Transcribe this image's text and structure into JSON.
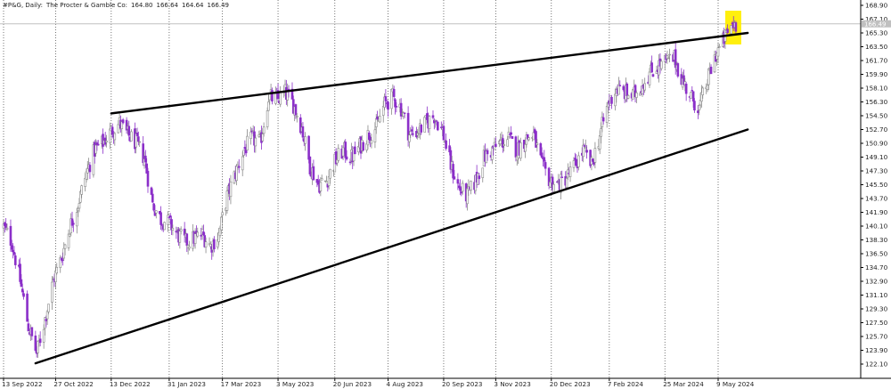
{
  "header": {
    "symbol": "#P&G, Daily:",
    "name": "The Procter & Gamble Co:",
    "open": "164.80",
    "high": "166.64",
    "low": "164.64",
    "close": "166.49"
  },
  "colors": {
    "bull": "#888888",
    "bear": "#8b2fc9",
    "trendline": "#000000",
    "grid": "#555555",
    "highlight": "#ffee00",
    "current_line": "#c0c0c0"
  },
  "current_price_label": "166.49",
  "chart_data": {
    "type": "candlestick",
    "title": "",
    "ylim": [
      121.3,
      169.8
    ],
    "y_ticks": [
      "168.90",
      "167.10",
      "165.30",
      "163.50",
      "161.70",
      "159.90",
      "158.10",
      "156.30",
      "154.50",
      "152.70",
      "150.90",
      "149.10",
      "147.30",
      "145.50",
      "143.70",
      "141.90",
      "140.10",
      "138.30",
      "136.50",
      "134.70",
      "132.90",
      "131.10",
      "129.30",
      "127.50",
      "125.70",
      "123.90",
      "122.10"
    ],
    "x_ticks": [
      "13 Sep 2022",
      "27 Oct 2022",
      "13 Dec 2022",
      "31 Jan 2023",
      "17 Mar 2023",
      "3 May 2023",
      "20 Jun 2023",
      "4 Aug 2023",
      "20 Sep 2023",
      "3 Nov 2023",
      "20 Dec 2023",
      "7 Feb 2024",
      "25 Mar 2024",
      "9 May 2024"
    ],
    "grid": "vertical dotted",
    "close_anchors": [
      {
        "date": "2022-09-13",
        "close": 140.0
      },
      {
        "date": "2022-09-20",
        "close": 138.0
      },
      {
        "date": "2022-09-27",
        "close": 133.0
      },
      {
        "date": "2022-10-04",
        "close": 127.0
      },
      {
        "date": "2022-10-11",
        "close": 123.5
      },
      {
        "date": "2022-10-18",
        "close": 128.0
      },
      {
        "date": "2022-10-25",
        "close": 133.0
      },
      {
        "date": "2022-11-01",
        "close": 136.0
      },
      {
        "date": "2022-11-08",
        "close": 140.0
      },
      {
        "date": "2022-11-15",
        "close": 143.0
      },
      {
        "date": "2022-11-22",
        "close": 147.0
      },
      {
        "date": "2022-11-29",
        "close": 150.0
      },
      {
        "date": "2022-12-06",
        "close": 151.0
      },
      {
        "date": "2022-12-13",
        "close": 152.5
      },
      {
        "date": "2022-12-20",
        "close": 153.5
      },
      {
        "date": "2022-12-27",
        "close": 152.0
      },
      {
        "date": "2023-01-03",
        "close": 151.0
      },
      {
        "date": "2023-01-10",
        "close": 149.0
      },
      {
        "date": "2023-01-17",
        "close": 143.0
      },
      {
        "date": "2023-01-24",
        "close": 141.0
      },
      {
        "date": "2023-01-31",
        "close": 140.5
      },
      {
        "date": "2023-02-07",
        "close": 139.0
      },
      {
        "date": "2023-02-14",
        "close": 138.0
      },
      {
        "date": "2023-02-21",
        "close": 138.5
      },
      {
        "date": "2023-02-28",
        "close": 139.0
      },
      {
        "date": "2023-03-07",
        "close": 137.5
      },
      {
        "date": "2023-03-14",
        "close": 139.0
      },
      {
        "date": "2023-03-21",
        "close": 144.0
      },
      {
        "date": "2023-03-28",
        "close": 147.0
      },
      {
        "date": "2023-04-04",
        "close": 150.0
      },
      {
        "date": "2023-04-11",
        "close": 151.5
      },
      {
        "date": "2023-04-18",
        "close": 151.0
      },
      {
        "date": "2023-04-25",
        "close": 157.0
      },
      {
        "date": "2023-05-02",
        "close": 156.5
      },
      {
        "date": "2023-05-09",
        "close": 157.5
      },
      {
        "date": "2023-05-16",
        "close": 156.0
      },
      {
        "date": "2023-05-23",
        "close": 153.0
      },
      {
        "date": "2023-05-30",
        "close": 148.0
      },
      {
        "date": "2023-06-06",
        "close": 145.5
      },
      {
        "date": "2023-06-13",
        "close": 146.0
      },
      {
        "date": "2023-06-20",
        "close": 148.5
      },
      {
        "date": "2023-06-27",
        "close": 150.0
      },
      {
        "date": "2023-07-04",
        "close": 149.0
      },
      {
        "date": "2023-07-11",
        "close": 150.5
      },
      {
        "date": "2023-07-18",
        "close": 152.0
      },
      {
        "date": "2023-07-25",
        "close": 153.0
      },
      {
        "date": "2023-08-01",
        "close": 156.0
      },
      {
        "date": "2023-08-08",
        "close": 157.0
      },
      {
        "date": "2023-08-15",
        "close": 155.5
      },
      {
        "date": "2023-08-22",
        "close": 152.0
      },
      {
        "date": "2023-08-29",
        "close": 152.5
      },
      {
        "date": "2023-09-05",
        "close": 153.5
      },
      {
        "date": "2023-09-12",
        "close": 154.5
      },
      {
        "date": "2023-09-19",
        "close": 152.5
      },
      {
        "date": "2023-09-26",
        "close": 148.0
      },
      {
        "date": "2023-10-03",
        "close": 145.0
      },
      {
        "date": "2023-10-10",
        "close": 144.0
      },
      {
        "date": "2023-10-17",
        "close": 146.0
      },
      {
        "date": "2023-10-24",
        "close": 149.0
      },
      {
        "date": "2023-10-31",
        "close": 150.0
      },
      {
        "date": "2023-11-07",
        "close": 151.0
      },
      {
        "date": "2023-11-14",
        "close": 151.5
      },
      {
        "date": "2023-11-21",
        "close": 150.0
      },
      {
        "date": "2023-11-28",
        "close": 151.5
      },
      {
        "date": "2023-12-05",
        "close": 152.0
      },
      {
        "date": "2023-12-12",
        "close": 148.0
      },
      {
        "date": "2023-12-19",
        "close": 146.0
      },
      {
        "date": "2023-12-26",
        "close": 145.5
      },
      {
        "date": "2024-01-02",
        "close": 146.5
      },
      {
        "date": "2024-01-09",
        "close": 148.0
      },
      {
        "date": "2024-01-16",
        "close": 150.0
      },
      {
        "date": "2024-01-23",
        "close": 148.0
      },
      {
        "date": "2024-01-30",
        "close": 152.0
      },
      {
        "date": "2024-02-06",
        "close": 156.0
      },
      {
        "date": "2024-02-13",
        "close": 158.0
      },
      {
        "date": "2024-02-20",
        "close": 157.5
      },
      {
        "date": "2024-02-27",
        "close": 157.0
      },
      {
        "date": "2024-03-05",
        "close": 158.5
      },
      {
        "date": "2024-03-12",
        "close": 160.0
      },
      {
        "date": "2024-03-19",
        "close": 161.0
      },
      {
        "date": "2024-03-26",
        "close": 161.5
      },
      {
        "date": "2024-04-02",
        "close": 162.0
      },
      {
        "date": "2024-04-09",
        "close": 159.0
      },
      {
        "date": "2024-04-16",
        "close": 157.0
      },
      {
        "date": "2024-04-23",
        "close": 155.5
      },
      {
        "date": "2024-04-30",
        "close": 159.0
      },
      {
        "date": "2024-05-07",
        "close": 162.5
      },
      {
        "date": "2024-05-14",
        "close": 164.5
      },
      {
        "date": "2024-05-21",
        "close": 166.5
      },
      {
        "date": "2024-05-24",
        "close": 166.5
      }
    ],
    "trendlines": [
      {
        "name": "upper",
        "start": {
          "date": "2022-12-13",
          "price": 154.8
        },
        "end": {
          "date": "2024-06-03",
          "price": 165.3
        }
      },
      {
        "name": "lower",
        "start": {
          "date": "2022-10-10",
          "price": 122.2
        },
        "end": {
          "date": "2024-06-03",
          "price": 152.7
        }
      }
    ],
    "highlight": {
      "from": "2024-05-15",
      "to": "2024-05-24",
      "low": 163.8,
      "high": 168.2
    }
  }
}
